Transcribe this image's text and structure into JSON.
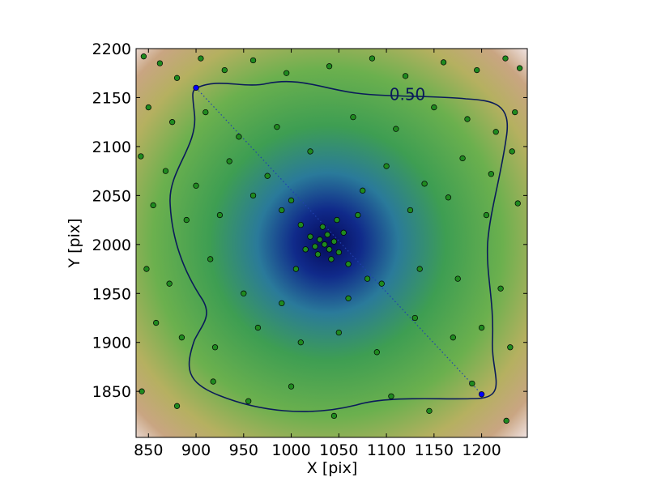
{
  "chart_data": {
    "type": "scatter",
    "xlabel": "X [pix]",
    "ylabel": "Y [pix]",
    "annotation": "0.50",
    "xlim": [
      837,
      1248
    ],
    "ylim": [
      1803,
      2200
    ],
    "xticks": [
      850,
      900,
      950,
      1000,
      1050,
      1100,
      1150,
      1200
    ],
    "yticks": [
      1850,
      1900,
      1950,
      2000,
      2050,
      2100,
      2150,
      2200
    ],
    "series": [
      {
        "color": "#1f8a1f",
        "x": [
          1035,
          1030,
          1040,
          1025,
          1045,
          1038,
          1028,
          1050,
          1020,
          1042,
          1033,
          1055,
          1015,
          1048,
          1010,
          1060,
          1005,
          1070,
          990,
          1080,
          845,
          862,
          880,
          905,
          930,
          960,
          995,
          1040,
          1085,
          1120,
          1160,
          1195,
          1225,
          1240,
          850,
          875,
          910,
          945,
          985,
          1065,
          1110,
          1150,
          1185,
          1215,
          1235,
          842,
          868,
          900,
          935,
          975,
          1020,
          1100,
          1140,
          1180,
          1210,
          1232,
          855,
          890,
          925,
          960,
          1000,
          1075,
          1125,
          1165,
          1205,
          1238,
          848,
          872,
          915,
          950,
          990,
          1060,
          1095,
          1135,
          1175,
          1220,
          858,
          885,
          920,
          965,
          1010,
          1050,
          1090,
          1130,
          1170,
          1200,
          1230,
          843,
          880,
          918,
          955,
          1000,
          1045,
          1105,
          1145,
          1190,
          1226
        ],
        "y": [
          2000,
          2005,
          1995,
          1998,
          2003,
          2010,
          1990,
          1992,
          2008,
          1985,
          2018,
          2012,
          1995,
          2025,
          2020,
          1980,
          1975,
          2030,
          2035,
          1965,
          2192,
          2185,
          2170,
          2190,
          2178,
          2188,
          2175,
          2182,
          2190,
          2172,
          2186,
          2178,
          2190,
          2180,
          2140,
          2125,
          2135,
          2110,
          2120,
          2130,
          2118,
          2140,
          2128,
          2115,
          2135,
          2090,
          2075,
          2060,
          2085,
          2070,
          2095,
          2080,
          2062,
          2088,
          2072,
          2095,
          2040,
          2025,
          2030,
          2050,
          2045,
          2055,
          2035,
          2048,
          2030,
          2042,
          1975,
          1960,
          1985,
          1950,
          1940,
          1945,
          1960,
          1975,
          1965,
          1955,
          1920,
          1905,
          1895,
          1915,
          1900,
          1910,
          1890,
          1925,
          1905,
          1915,
          1895,
          1850,
          1835,
          1860,
          1840,
          1855,
          1825,
          1845,
          1830,
          1858,
          1820
        ]
      },
      {
        "color": "#0000ff",
        "x": [
          900,
          1200
        ],
        "y": [
          2160,
          1847
        ]
      }
    ]
  }
}
